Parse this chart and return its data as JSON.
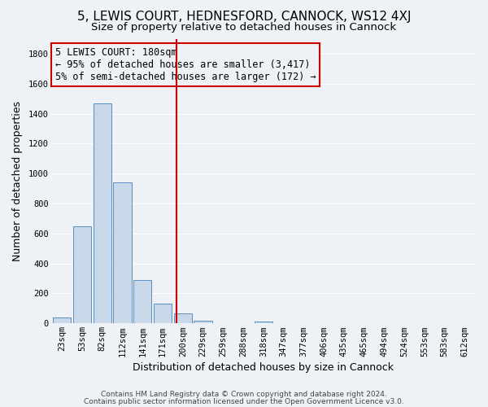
{
  "title": "5, LEWIS COURT, HEDNESFORD, CANNOCK, WS12 4XJ",
  "subtitle": "Size of property relative to detached houses in Cannock",
  "xlabel": "Distribution of detached houses by size in Cannock",
  "ylabel": "Number of detached properties",
  "bar_labels": [
    "23sqm",
    "53sqm",
    "82sqm",
    "112sqm",
    "141sqm",
    "171sqm",
    "200sqm",
    "229sqm",
    "259sqm",
    "288sqm",
    "318sqm",
    "347sqm",
    "377sqm",
    "406sqm",
    "435sqm",
    "465sqm",
    "494sqm",
    "524sqm",
    "553sqm",
    "583sqm",
    "612sqm"
  ],
  "bar_values": [
    40,
    650,
    1470,
    940,
    290,
    130,
    65,
    20,
    0,
    0,
    10,
    0,
    0,
    0,
    0,
    0,
    0,
    0,
    0,
    0,
    0
  ],
  "bar_color": "#c8d8e8",
  "bar_edge_color": "#5a8fc0",
  "vline_x": 5.67,
  "vline_color": "#cc0000",
  "ylim": [
    0,
    1900
  ],
  "yticks": [
    0,
    200,
    400,
    600,
    800,
    1000,
    1200,
    1400,
    1600,
    1800
  ],
  "annotation_title": "5 LEWIS COURT: 180sqm",
  "annotation_line1": "← 95% of detached houses are smaller (3,417)",
  "annotation_line2": "5% of semi-detached houses are larger (172) →",
  "annotation_box_edge": "#cc0000",
  "footer_line1": "Contains HM Land Registry data © Crown copyright and database right 2024.",
  "footer_line2": "Contains public sector information licensed under the Open Government Licence v3.0.",
  "background_color": "#eef2f7",
  "grid_color": "#ffffff",
  "title_fontsize": 11,
  "subtitle_fontsize": 9.5,
  "axis_label_fontsize": 9,
  "tick_fontsize": 7.5,
  "footer_fontsize": 6.5,
  "annotation_fontsize": 8.5
}
